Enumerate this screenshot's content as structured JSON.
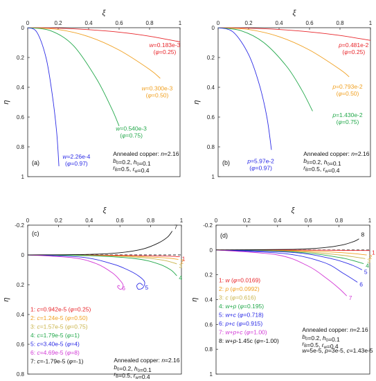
{
  "colors": {
    "red": "#e8252a",
    "orange": "#f0a020",
    "khaki": "#c9b34a",
    "green": "#22a84a",
    "blue": "#2a2ae6",
    "magenta": "#d23ad6",
    "black": "#111111",
    "dash": "#333333"
  },
  "chart_data": [
    {
      "id": "a",
      "type": "line",
      "panel_label": "(a)",
      "xlabel": "ξ",
      "ylabel": "η",
      "xlim": [
        0,
        1
      ],
      "ylim": [
        1,
        0
      ],
      "xticks": [
        "0",
        "0.2",
        "0.4",
        "0.6",
        "0.8",
        "1"
      ],
      "yticks": [
        "0",
        "0.2",
        "0.4",
        "0.6",
        "0.8",
        "1"
      ],
      "annotation": [
        "Annealed copper: n=2.16",
        "b0=0.2, h0=0.1",
        "rB=0.5, rw=0.4"
      ],
      "series": [
        {
          "name": "w=0.183e-3 (φ=0.25)",
          "color": "red",
          "x": [
            0,
            0.2,
            0.4,
            0.6,
            0.8,
            1.0
          ],
          "y": [
            0,
            0.003,
            0.013,
            0.03,
            0.057,
            0.095
          ]
        },
        {
          "name": "w=0.300e-3 (φ=0.50)",
          "color": "orange",
          "x": [
            0,
            0.2,
            0.4,
            0.6,
            0.8,
            0.87
          ],
          "y": [
            0,
            0.012,
            0.06,
            0.15,
            0.28,
            0.34
          ]
        },
        {
          "name": "w=0.540e-3 (φ=0.75)",
          "color": "green",
          "x": [
            0,
            0.15,
            0.3,
            0.45,
            0.55,
            0.6
          ],
          "y": [
            0,
            0.02,
            0.12,
            0.34,
            0.54,
            0.66
          ]
        },
        {
          "name": "w=2.26e-4 (φ=0.97)",
          "color": "blue",
          "x": [
            0,
            0.06,
            0.12,
            0.16,
            0.19,
            0.205
          ],
          "y": [
            0,
            0.03,
            0.2,
            0.44,
            0.7,
            0.93
          ]
        }
      ],
      "labels": [
        {
          "line1": "w=0.183e-3",
          "line2": "(φ=0.25)",
          "color": "red"
        },
        {
          "line1": "w=0.300e-3",
          "line2": "(φ=0.50)",
          "color": "orange"
        },
        {
          "line1": "w=0.540e-3",
          "line2": "(φ=0.75)",
          "color": "green"
        },
        {
          "line1": "w=2.26e-4",
          "line2": "(φ=0.97)",
          "color": "blue"
        }
      ]
    },
    {
      "id": "b",
      "type": "line",
      "panel_label": "(b)",
      "xlabel": "ξ",
      "ylabel": "η",
      "xlim": [
        0,
        1
      ],
      "ylim": [
        1,
        0
      ],
      "xticks": [
        "0",
        "0.2",
        "0.4",
        "0.6",
        "0.8",
        "1"
      ],
      "yticks": [
        "0",
        "0.2",
        "0.4",
        "0.6",
        "0.8",
        "1"
      ],
      "annotation": [
        "Annealed copper: n=2.16",
        "b0=0.2, h0=0.1",
        "rB=0.5, rw=0.4"
      ],
      "series": [
        {
          "name": "p=0.481e-2 (φ=0.25)",
          "color": "red",
          "x": [
            0,
            0.2,
            0.4,
            0.6,
            0.8,
            1.0
          ],
          "y": [
            0,
            0.003,
            0.012,
            0.028,
            0.052,
            0.085
          ]
        },
        {
          "name": "p=0.793e-2 (φ=0.50)",
          "color": "orange",
          "x": [
            0,
            0.2,
            0.4,
            0.6,
            0.8,
            0.86
          ],
          "y": [
            0,
            0.012,
            0.06,
            0.15,
            0.28,
            0.33
          ]
        },
        {
          "name": "p=1.430e-2 (φ=0.75)",
          "color": "green",
          "x": [
            0,
            0.15,
            0.3,
            0.45,
            0.55,
            0.62
          ],
          "y": [
            0,
            0.02,
            0.1,
            0.26,
            0.42,
            0.56
          ]
        },
        {
          "name": "p=5.97e-2 (φ=0.97)",
          "color": "blue",
          "x": [
            0,
            0.1,
            0.2,
            0.27,
            0.32,
            0.35
          ],
          "y": [
            0,
            0.03,
            0.18,
            0.38,
            0.6,
            0.82
          ]
        }
      ],
      "labels": [
        {
          "line1": "p=0.481e-2",
          "line2": "(φ=0.25)",
          "color": "red"
        },
        {
          "line1": "p=0.793e-2",
          "line2": "(φ=0.50)",
          "color": "orange"
        },
        {
          "line1": "p=1.430e-2",
          "line2": "(φ=0.75)",
          "color": "green"
        },
        {
          "line1": "p=5.97e-2",
          "line2": "(φ=0.97)",
          "color": "blue"
        }
      ]
    },
    {
      "id": "c",
      "type": "line",
      "panel_label": "(c)",
      "xlabel": "ξ",
      "ylabel": "η",
      "xlim": [
        0,
        1
      ],
      "ylim": [
        0.8,
        -0.2
      ],
      "xticks": [
        "0",
        "0.2",
        "0.4",
        "0.6",
        "0.8",
        "1"
      ],
      "yticks": [
        "-0.2",
        "0",
        "0.2",
        "0.4",
        "0.6",
        "0.8"
      ],
      "reference_line": {
        "y": 0,
        "style": "dashed"
      },
      "annotation": [
        "Annealed copper: n=2.16",
        "b0=0.2, h0=0.1",
        "rB=0.5, rw=0.4"
      ],
      "series": [
        {
          "name": "c=0.942e-5 (φ=0.25)",
          "color": "red",
          "x": [
            0,
            0.4,
            0.7,
            0.9,
            0.99
          ],
          "y": [
            0,
            0.001,
            0.004,
            0.008,
            0.012
          ]
        },
        {
          "name": "c=1.24e-5 (φ=0.50)",
          "color": "orange",
          "x": [
            0,
            0.4,
            0.7,
            0.9,
            0.98
          ],
          "y": [
            0,
            0.003,
            0.01,
            0.02,
            0.03
          ]
        },
        {
          "name": "c=1.57e-5 (φ=0.75)",
          "color": "khaki",
          "x": [
            0,
            0.4,
            0.7,
            0.88,
            0.97
          ],
          "y": [
            0,
            0.004,
            0.015,
            0.035,
            0.06
          ]
        },
        {
          "name": "c=1.79e-5 (φ=1)",
          "color": "green",
          "x": [
            0,
            0.4,
            0.7,
            0.85,
            0.93,
            0.97
          ],
          "y": [
            0,
            0.005,
            0.025,
            0.06,
            0.1,
            0.14
          ]
        },
        {
          "name": "c=3.40e-5 (φ=4)",
          "color": "blue",
          "x": [
            0,
            0.35,
            0.55,
            0.65,
            0.72,
            0.76,
            0.75,
            0.72,
            0.71,
            0.73,
            0.75
          ],
          "y": [
            0,
            0.015,
            0.06,
            0.1,
            0.14,
            0.18,
            0.22,
            0.23,
            0.205,
            0.19,
            0.205
          ]
        },
        {
          "name": "c=4.69e-5 (φ=8)",
          "color": "magenta",
          "x": [
            0,
            0.3,
            0.45,
            0.55,
            0.6,
            0.62,
            0.615,
            0.6,
            0.585,
            0.59,
            0.6
          ],
          "y": [
            0,
            0.02,
            0.06,
            0.12,
            0.17,
            0.2,
            0.225,
            0.23,
            0.215,
            0.205,
            0.21
          ]
        },
        {
          "name": "c=-1.79e-5 (φ=-1)",
          "color": "black",
          "x": [
            0,
            0.4,
            0.6,
            0.75,
            0.85,
            0.91,
            0.94
          ],
          "y": [
            0,
            -0.004,
            -0.015,
            -0.04,
            -0.08,
            -0.12,
            -0.16
          ]
        }
      ],
      "end_labels": [
        "1",
        "2",
        "3",
        "4",
        "5",
        "6",
        "7"
      ],
      "legend": [
        {
          "text": "1: c=0.942e-5 (φ=0.25)",
          "color": "red"
        },
        {
          "text": "2: c=1.24e-5 (φ=0.50)",
          "color": "orange"
        },
        {
          "text": "3: c=1.57e-5 (φ=0.75)",
          "color": "khaki"
        },
        {
          "text": "4: c=1.79e-5 (φ=1)",
          "color": "green"
        },
        {
          "text": "5: c=3.40e-5 (φ=4)",
          "color": "blue"
        },
        {
          "text": "6: c=4.69e-5 (φ=8)",
          "color": "magenta"
        },
        {
          "text": "7: c=-1.79e-5 (φ=-1)",
          "color": "black"
        }
      ]
    },
    {
      "id": "d",
      "type": "line",
      "panel_label": "(d)",
      "xlabel": "ξ",
      "ylabel": "η",
      "xlim": [
        0,
        1
      ],
      "ylim": [
        1,
        -0.2
      ],
      "xticks": [
        "0",
        "0.2",
        "0.4",
        "0.6",
        "0.8",
        "1"
      ],
      "yticks": [
        "-0.2",
        "0",
        "0.2",
        "0.4",
        "0.6",
        "0.8",
        "1"
      ],
      "reference_line": {
        "y": 0,
        "style": "dashed"
      },
      "annotation": [
        "Annealed copper: n=2.16",
        "b0=0.2, h0=0.1",
        "rB=0.5, rw=0.4",
        "w=5e-5, p=3e-5, c=1.43e-5"
      ],
      "series": [
        {
          "name": "w (φ=0.0169)",
          "color": "red",
          "x": [
            0,
            0.5,
            0.8,
            1.0
          ],
          "y": [
            0,
            0.001,
            0.003,
            0.005
          ]
        },
        {
          "name": "p (φ=0.0992)",
          "color": "orange",
          "x": [
            0,
            0.5,
            0.8,
            0.98
          ],
          "y": [
            0,
            0.006,
            0.02,
            0.04
          ]
        },
        {
          "name": "c (φ=0.616)",
          "color": "khaki",
          "x": [
            0,
            0.5,
            0.8,
            0.97
          ],
          "y": [
            0,
            0.01,
            0.04,
            0.07
          ]
        },
        {
          "name": "w+p (φ=0.195)",
          "color": "green",
          "x": [
            0,
            0.5,
            0.8,
            0.96
          ],
          "y": [
            0,
            0.015,
            0.06,
            0.11
          ]
        },
        {
          "name": "w+c (φ=0.718)",
          "color": "blue",
          "x": [
            0,
            0.5,
            0.75,
            0.88,
            0.95
          ],
          "y": [
            0,
            0.02,
            0.07,
            0.12,
            0.16
          ]
        },
        {
          "name": "p+c (φ=0.915)",
          "color": "blue",
          "x": [
            0,
            0.45,
            0.7,
            0.83,
            0.92
          ],
          "y": [
            0,
            0.03,
            0.1,
            0.19,
            0.26
          ]
        },
        {
          "name": "w+p+c (φ=1.00)",
          "color": "magenta",
          "x": [
            0,
            0.4,
            0.6,
            0.72,
            0.8,
            0.85
          ],
          "y": [
            0,
            0.04,
            0.13,
            0.23,
            0.31,
            0.37
          ]
        },
        {
          "name": "w+p-1.45c (φ=-1.00)",
          "color": "black",
          "x": [
            0,
            0.5,
            0.7,
            0.82,
            0.9,
            0.93
          ],
          "y": [
            0,
            -0.005,
            -0.018,
            -0.04,
            -0.07,
            -0.09
          ]
        }
      ],
      "end_labels": [
        "1",
        "2",
        "3",
        "4",
        "5",
        "6",
        "7",
        "8"
      ],
      "legend": [
        {
          "text": "1: w (φ=0.0169)",
          "color": "red"
        },
        {
          "text": "2: p (φ=0.0992)",
          "color": "orange"
        },
        {
          "text": "3: c (φ=0.616)",
          "color": "khaki"
        },
        {
          "text": "4: w+p (φ=0.195)",
          "color": "green"
        },
        {
          "text": "5: w+c (φ=0.718)",
          "color": "blue"
        },
        {
          "text": "6: p+c (φ=0.915)",
          "color": "blue"
        },
        {
          "text": "7: w+p+c (φ=1.00)",
          "color": "magenta"
        },
        {
          "text": "8: w+p-1.45c (φ=-1.00)",
          "color": "black"
        }
      ]
    }
  ]
}
